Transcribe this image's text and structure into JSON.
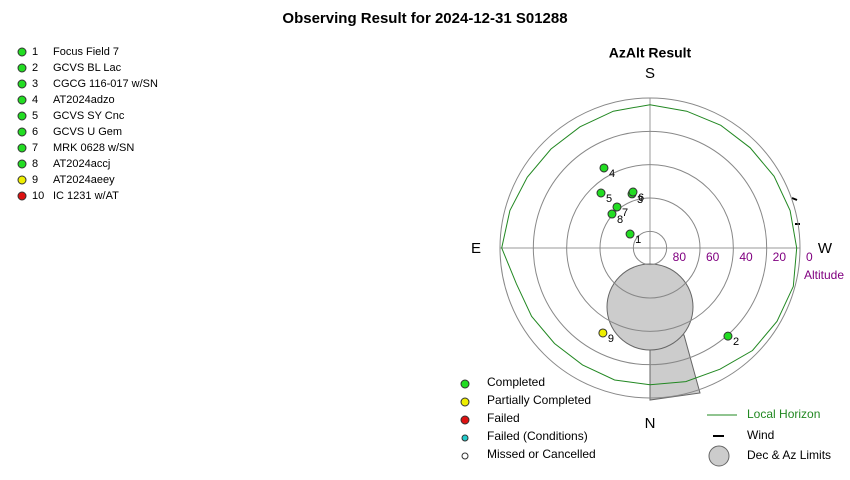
{
  "title": "Observing Result for 2024-12-31 S01288",
  "targets": [
    {
      "number": "1",
      "name": "Focus Field 7",
      "color": "#22dd22"
    },
    {
      "number": "2",
      "name": "GCVS BL Lac",
      "color": "#22dd22"
    },
    {
      "number": "3",
      "name": "CGCG 116-017 w/SN",
      "color": "#22dd22"
    },
    {
      "number": "4",
      "name": "AT2024adzo",
      "color": "#22dd22"
    },
    {
      "number": "5",
      "name": "GCVS SY Cnc",
      "color": "#22dd22"
    },
    {
      "number": "6",
      "name": "GCVS U Gem",
      "color": "#22dd22"
    },
    {
      "number": "7",
      "name": "MRK 0628 w/SN",
      "color": "#22dd22"
    },
    {
      "number": "8",
      "name": "AT2024accj",
      "color": "#22dd22"
    },
    {
      "number": "9",
      "name": "AT2024aeey",
      "color": "#eeee00"
    },
    {
      "number": "10",
      "name": "IC 1231 w/AT",
      "color": "#dd1111"
    }
  ],
  "chart_data": {
    "type": "polar",
    "title": "AzAlt Result",
    "directions": {
      "top": "S",
      "left": "E",
      "right": "W",
      "bottom": "N"
    },
    "rlim": [
      90,
      0
    ],
    "rticks": [
      80,
      60,
      40,
      20,
      0
    ],
    "r_label": "Altitude",
    "points": {
      "az": [
        125,
        318.5,
        161.6,
        150.1,
        138.3,
        163.1,
        141.2,
        131.8,
        29,
        null
      ],
      "alt": [
        75.4,
        19.4,
        55.8,
        34.6,
        45.8,
        54.9,
        58.4,
        59.4,
        31.7,
        null
      ]
    },
    "horizon": {
      "name": "Local Horizon",
      "color": "#228822",
      "az": [
        0,
        15,
        30,
        45,
        60,
        75,
        90,
        105,
        120,
        135,
        150,
        165,
        180,
        195,
        210,
        225,
        240,
        255,
        270,
        285,
        300,
        315,
        330,
        345
      ],
      "alt": [
        8,
        8,
        9,
        9,
        8,
        7,
        1,
        3,
        5,
        6,
        6,
        5,
        4,
        5,
        5,
        5,
        4,
        3,
        2,
        1,
        2,
        3,
        6,
        7
      ]
    }
  },
  "legend": {
    "status": [
      {
        "label": "Completed",
        "color": "#22dd22"
      },
      {
        "label": "Partially Completed",
        "color": "#eeee00"
      },
      {
        "label": "Failed",
        "color": "#dd1111"
      },
      {
        "label": "Failed (Conditions)",
        "color": "#22cccc"
      },
      {
        "label": "Missed or Cancelled",
        "color": "#ffffff"
      }
    ],
    "wind": "Wind",
    "limits": "Dec & Az Limits"
  }
}
